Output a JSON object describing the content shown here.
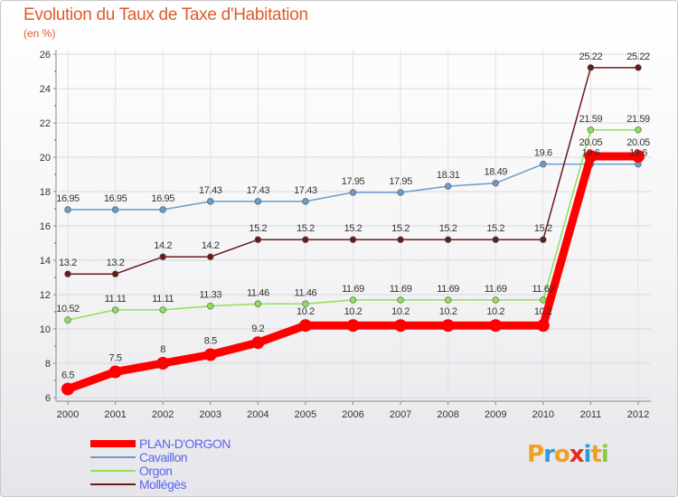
{
  "chart_data": {
    "type": "line",
    "title": "Evolution du Taux de Taxe d'Habitation",
    "subtitle": "(en %)",
    "categories": [
      "2000",
      "2001",
      "2002",
      "2003",
      "2004",
      "2005",
      "2006",
      "2007",
      "2008",
      "2009",
      "2010",
      "2011",
      "2012"
    ],
    "y_ticks": [
      "6",
      "8",
      "10",
      "12",
      "14",
      "16",
      "18",
      "20",
      "22",
      "24",
      "26"
    ],
    "ylim": [
      6,
      26
    ],
    "grid": true,
    "legend_position": "bottom-left",
    "series": [
      {
        "name": "PLAN-D'ORGON",
        "color": "#ff0000",
        "values": [
          6.5,
          7.5,
          8,
          8.5,
          9.2,
          10.2,
          10.2,
          10.2,
          10.2,
          10.2,
          10.2,
          20.05,
          20.05
        ],
        "labels": [
          "6.5",
          "7.5",
          "8",
          "8.5",
          "9.2",
          "10.2",
          "10.2",
          "10.2",
          "10.2",
          "10.2",
          "10.2",
          "",
          "20.05"
        ]
      },
      {
        "name": "Cavaillon",
        "color": "#6a9ccb",
        "values": [
          16.95,
          16.95,
          16.95,
          17.43,
          17.43,
          17.43,
          17.95,
          17.95,
          18.31,
          18.49,
          19.6,
          19.6,
          19.6
        ],
        "labels": [
          "16.95",
          "16.95",
          "16.95",
          "17.43",
          "17.43",
          "17.43",
          "17.95",
          "17.95",
          "18.31",
          "18.49",
          "19.6",
          "19.6",
          "19.6"
        ]
      },
      {
        "name": "Orgon",
        "color": "#8ee05a",
        "values": [
          10.52,
          11.11,
          11.11,
          11.33,
          11.46,
          11.46,
          11.69,
          11.69,
          11.69,
          11.69,
          11.69,
          21.59,
          21.59
        ],
        "labels": [
          "10.52",
          "11.11",
          "11.11",
          "11.33",
          "11.46",
          "11.46",
          "11.69",
          "11.69",
          "11.69",
          "11.69",
          "11.69",
          "21.59",
          "21.59"
        ]
      },
      {
        "name": "Mollégès",
        "color": "#6b1a1a",
        "values": [
          13.2,
          13.2,
          14.2,
          14.2,
          15.2,
          15.2,
          15.2,
          15.2,
          15.2,
          15.2,
          15.2,
          25.22,
          25.22
        ],
        "labels": [
          "13.2",
          "13.2",
          "14.2",
          "14.2",
          "15.2",
          "15.2",
          "15.2",
          "15.2",
          "15.2",
          "15.2",
          "15.2",
          "25.22",
          "25.22"
        ]
      }
    ]
  },
  "extra_labels": {
    "plan_2011_label": "20.05"
  },
  "logo": {
    "text": "Proxiti",
    "letters": [
      "P",
      "r",
      "o",
      "x",
      "i",
      "t",
      "i"
    ],
    "colors": [
      "#f0a020",
      "#2a9de0",
      "#f0a020",
      "#e03020",
      "#2a9de0",
      "#f0a020",
      "#8acb3a"
    ]
  }
}
